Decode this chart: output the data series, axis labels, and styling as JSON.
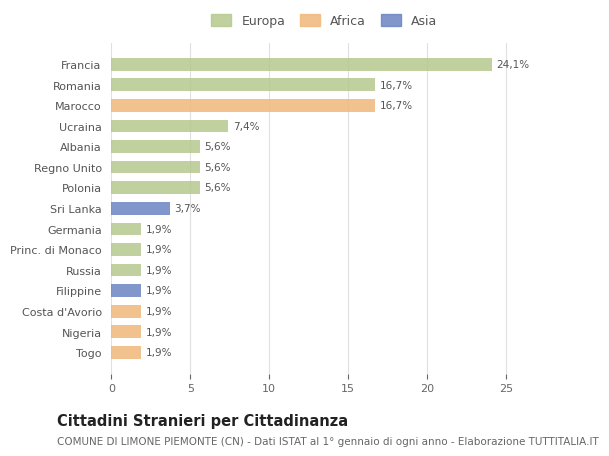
{
  "categories": [
    "Francia",
    "Romania",
    "Marocco",
    "Ucraina",
    "Albania",
    "Regno Unito",
    "Polonia",
    "Sri Lanka",
    "Germania",
    "Princ. di Monaco",
    "Russia",
    "Filippine",
    "Costa d'Avorio",
    "Nigeria",
    "Togo"
  ],
  "values": [
    24.1,
    16.7,
    16.7,
    7.4,
    5.6,
    5.6,
    5.6,
    3.7,
    1.9,
    1.9,
    1.9,
    1.9,
    1.9,
    1.9,
    1.9
  ],
  "labels": [
    "24,1%",
    "16,7%",
    "16,7%",
    "7,4%",
    "5,6%",
    "5,6%",
    "5,6%",
    "3,7%",
    "1,9%",
    "1,9%",
    "1,9%",
    "1,9%",
    "1,9%",
    "1,9%",
    "1,9%"
  ],
  "continents": [
    "Europa",
    "Europa",
    "Africa",
    "Europa",
    "Europa",
    "Europa",
    "Europa",
    "Asia",
    "Europa",
    "Europa",
    "Europa",
    "Asia",
    "Africa",
    "Africa",
    "Africa"
  ],
  "colors": {
    "Europa": "#b5c98e",
    "Africa": "#f0b87a",
    "Asia": "#6b85c2"
  },
  "legend_order": [
    "Europa",
    "Africa",
    "Asia"
  ],
  "title": "Cittadini Stranieri per Cittadinanza",
  "subtitle": "COMUNE DI LIMONE PIEMONTE (CN) - Dati ISTAT al 1° gennaio di ogni anno - Elaborazione TUTTITALIA.IT",
  "xlim": [
    0,
    27
  ],
  "xticks": [
    0,
    5,
    10,
    15,
    20,
    25
  ],
  "bg_color": "#ffffff",
  "grid_color": "#e0e0e0",
  "title_fontsize": 10.5,
  "subtitle_fontsize": 7.5,
  "label_fontsize": 7.5,
  "tick_fontsize": 8,
  "bar_height": 0.62
}
